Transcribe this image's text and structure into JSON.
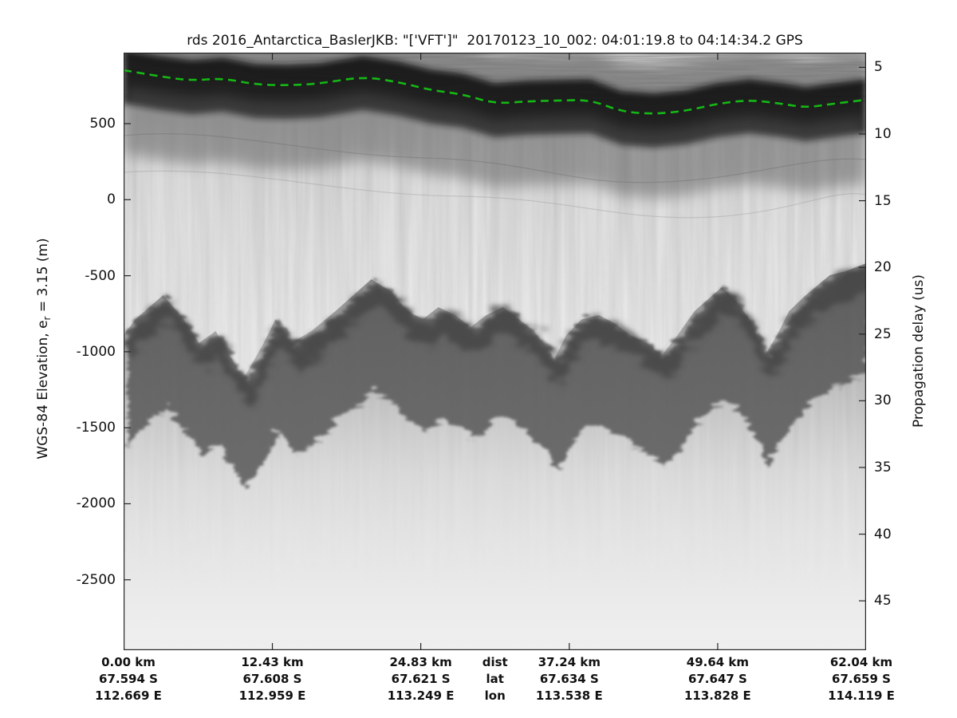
{
  "title": "rds 2016_Antarctica_BaslerJKB: \"['VFT']\"  20170123_10_002: 04:01:19.8 to 04:14:34.2 GPS",
  "axes": {
    "left": {
      "label_pre": "WGS-84 Elevation, e",
      "label_sub": "r",
      "label_post": " = 3.15 (m)",
      "ticks": [
        "500",
        "0",
        "-500",
        "-1000",
        "-1500",
        "-2000",
        "-2500"
      ]
    },
    "right": {
      "label": "Propagation delay (us)",
      "ticks": [
        "5",
        "10",
        "15",
        "20",
        "25",
        "30",
        "35",
        "40",
        "45"
      ]
    },
    "bottom": {
      "row_labels": [
        "dist",
        "lat",
        "lon"
      ],
      "columns": [
        {
          "dist": "0.00 km",
          "lat": "67.594 S",
          "lon": "112.669 E"
        },
        {
          "dist": "12.43 km",
          "lat": "67.608 S",
          "lon": "112.959 E"
        },
        {
          "dist": "24.83 km",
          "lat": "67.621 S",
          "lon": "113.249 E"
        },
        {
          "dist": "37.24 km",
          "lat": "67.634 S",
          "lon": "113.538 E"
        },
        {
          "dist": "49.64 km",
          "lat": "67.647 S",
          "lon": "113.828 E"
        },
        {
          "dist": "62.04 km",
          "lat": "67.659 S",
          "lon": "114.119 E"
        }
      ]
    }
  },
  "colors": {
    "surface_pick": "#15b815",
    "frame": "#262626",
    "background": "#ffffff"
  },
  "chart_data": {
    "type": "heatmap",
    "subtype": "radar-echogram",
    "title": "rds 2016_Antarctica_BaslerJKB: \"['VFT']\"  20170123_10_002: 04:01:19.8 to 04:14:34.2 GPS",
    "xlabel_rows": [
      "dist",
      "lat",
      "lon"
    ],
    "ylabel_left": "WGS-84 Elevation, e_r = 3.15 (m)",
    "ylabel_right": "Propagation delay (us)",
    "xlim_km": [
      0,
      62.04
    ],
    "ylim_left_m": [
      -2963,
      967
    ],
    "ylim_right_us": [
      3.9,
      48.7
    ],
    "yticks_left_m": [
      500,
      0,
      -500,
      -1000,
      -1500,
      -2000,
      -2500
    ],
    "yticks_right_us": [
      5,
      10,
      15,
      20,
      25,
      30,
      35,
      40,
      45
    ],
    "x_ticks_km": [
      0,
      12.43,
      24.83,
      37.24,
      49.64,
      62.04
    ],
    "x_ticks_lat_s": [
      67.594,
      67.608,
      67.621,
      67.634,
      67.647,
      67.659
    ],
    "x_ticks_lon_e": [
      112.669,
      112.959,
      113.249,
      113.538,
      113.828,
      114.119
    ],
    "grid": false,
    "legend": "none",
    "surface_pick_m": [
      [
        0,
        852
      ],
      [
        3,
        810
      ],
      [
        5.7,
        783
      ],
      [
        8.3,
        799
      ],
      [
        11,
        757
      ],
      [
        13.7,
        752
      ],
      [
        16.3,
        762
      ],
      [
        20,
        810
      ],
      [
        23,
        773
      ],
      [
        25.7,
        720
      ],
      [
        28.3,
        694
      ],
      [
        31,
        631
      ],
      [
        33.7,
        647
      ],
      [
        36.3,
        652
      ],
      [
        39,
        657
      ],
      [
        41.6,
        579
      ],
      [
        44.3,
        563
      ],
      [
        47,
        584
      ],
      [
        49.6,
        631
      ],
      [
        52.3,
        657
      ],
      [
        55,
        631
      ],
      [
        57,
        605
      ],
      [
        59.3,
        631
      ],
      [
        62.04,
        657
      ]
    ],
    "bed_echo_m": [
      [
        0,
        -890
      ],
      [
        1,
        -786
      ],
      [
        3.3,
        -628
      ],
      [
        5,
        -786
      ],
      [
        6.3,
        -943
      ],
      [
        7.7,
        -864
      ],
      [
        10,
        -1179
      ],
      [
        11.7,
        -943
      ],
      [
        12.7,
        -786
      ],
      [
        14,
        -943
      ],
      [
        15.7,
        -864
      ],
      [
        17.7,
        -733
      ],
      [
        20.7,
        -523
      ],
      [
        22.3,
        -602
      ],
      [
        23.7,
        -733
      ],
      [
        25,
        -786
      ],
      [
        26.3,
        -707
      ],
      [
        27.7,
        -759
      ],
      [
        29,
        -838
      ],
      [
        30.3,
        -759
      ],
      [
        31.7,
        -707
      ],
      [
        33,
        -786
      ],
      [
        34.3,
        -864
      ],
      [
        36,
        -1048
      ],
      [
        37,
        -890
      ],
      [
        38.3,
        -786
      ],
      [
        39.7,
        -759
      ],
      [
        41,
        -812
      ],
      [
        42.3,
        -890
      ],
      [
        43.7,
        -943
      ],
      [
        45,
        -1022
      ],
      [
        46.3,
        -890
      ],
      [
        47.7,
        -733
      ],
      [
        50,
        -575
      ],
      [
        51,
        -654
      ],
      [
        52.3,
        -786
      ],
      [
        53.6,
        -1022
      ],
      [
        54.6,
        -890
      ],
      [
        55.6,
        -733
      ],
      [
        57,
        -628
      ],
      [
        59,
        -497
      ],
      [
        60.3,
        -471
      ],
      [
        62.04,
        -418
      ]
    ]
  }
}
